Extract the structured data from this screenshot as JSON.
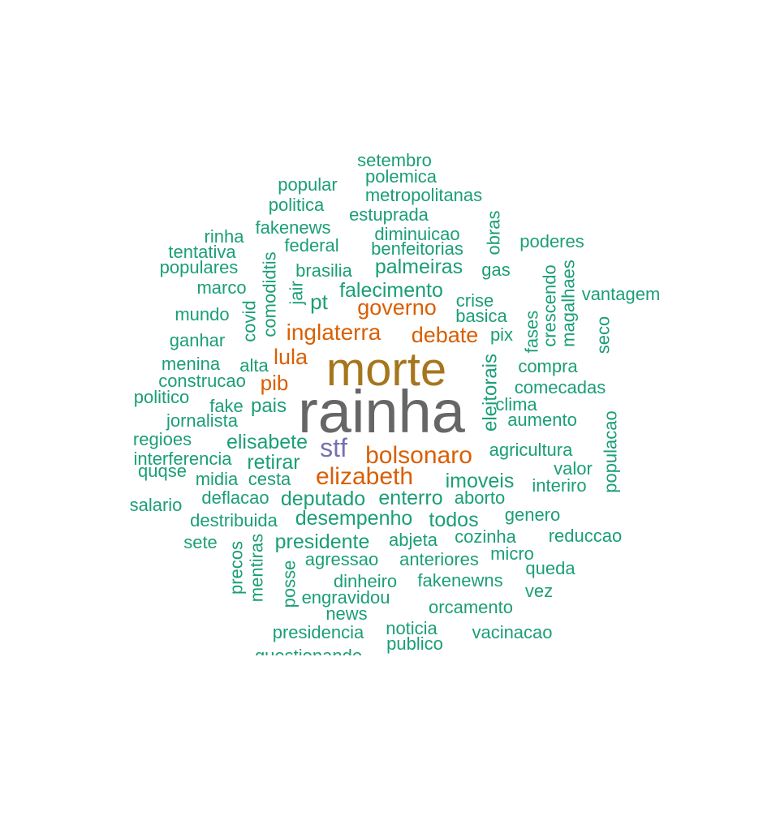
{
  "colors": {
    "teal": "#1b9e77",
    "orange": "#d95f02",
    "purple": "#7570b3",
    "brown": "#a6761d",
    "gray": "#666666"
  },
  "words": [
    {
      "text": "rainha",
      "color": "gray"
    },
    {
      "text": "morte",
      "color": "brown"
    },
    {
      "text": "bolsonaro",
      "color": "orange"
    },
    {
      "text": "elizabeth",
      "color": "orange"
    },
    {
      "text": "stf",
      "color": "purple"
    },
    {
      "text": "inglaterra",
      "color": "orange"
    },
    {
      "text": "governo",
      "color": "orange"
    },
    {
      "text": "debate",
      "color": "orange"
    },
    {
      "text": "lula",
      "color": "orange"
    },
    {
      "text": "pib",
      "color": "orange"
    },
    {
      "text": "setembro",
      "color": "teal"
    },
    {
      "text": "polemica",
      "color": "teal"
    },
    {
      "text": "popular",
      "color": "teal"
    },
    {
      "text": "metropolitanas",
      "color": "teal"
    },
    {
      "text": "politica",
      "color": "teal"
    },
    {
      "text": "estuprada",
      "color": "teal"
    },
    {
      "text": "fakenews",
      "color": "teal"
    },
    {
      "text": "rinha",
      "color": "teal"
    },
    {
      "text": "diminuicao",
      "color": "teal"
    },
    {
      "text": "federal",
      "color": "teal"
    },
    {
      "text": "benfeitorias",
      "color": "teal"
    },
    {
      "text": "tentativa",
      "color": "teal"
    },
    {
      "text": "poderes",
      "color": "teal"
    },
    {
      "text": "populares",
      "color": "teal"
    },
    {
      "text": "brasilia",
      "color": "teal"
    },
    {
      "text": "palmeiras",
      "color": "teal"
    },
    {
      "text": "gas",
      "color": "teal"
    },
    {
      "text": "marco",
      "color": "teal"
    },
    {
      "text": "falecimento",
      "color": "teal"
    },
    {
      "text": "vantagem",
      "color": "teal"
    },
    {
      "text": "pt",
      "color": "teal"
    },
    {
      "text": "crise",
      "color": "teal"
    },
    {
      "text": "mundo",
      "color": "teal"
    },
    {
      "text": "basica",
      "color": "teal"
    },
    {
      "text": "pix",
      "color": "teal"
    },
    {
      "text": "ganhar",
      "color": "teal"
    },
    {
      "text": "menina",
      "color": "teal"
    },
    {
      "text": "alta",
      "color": "teal"
    },
    {
      "text": "compra",
      "color": "teal"
    },
    {
      "text": "construcao",
      "color": "teal"
    },
    {
      "text": "comecadas",
      "color": "teal"
    },
    {
      "text": "politico",
      "color": "teal"
    },
    {
      "text": "fake",
      "color": "teal"
    },
    {
      "text": "pais",
      "color": "teal"
    },
    {
      "text": "clima",
      "color": "teal"
    },
    {
      "text": "jornalista",
      "color": "teal"
    },
    {
      "text": "aumento",
      "color": "teal"
    },
    {
      "text": "regioes",
      "color": "teal"
    },
    {
      "text": "elisabete",
      "color": "teal"
    },
    {
      "text": "agricultura",
      "color": "teal"
    },
    {
      "text": "interferencia",
      "color": "teal"
    },
    {
      "text": "retirar",
      "color": "teal"
    },
    {
      "text": "quqse",
      "color": "teal"
    },
    {
      "text": "valor",
      "color": "teal"
    },
    {
      "text": "midia",
      "color": "teal"
    },
    {
      "text": "cesta",
      "color": "teal"
    },
    {
      "text": "imoveis",
      "color": "teal"
    },
    {
      "text": "interiro",
      "color": "teal"
    },
    {
      "text": "salario",
      "color": "teal"
    },
    {
      "text": "deflacao",
      "color": "teal"
    },
    {
      "text": "deputado",
      "color": "teal"
    },
    {
      "text": "enterro",
      "color": "teal"
    },
    {
      "text": "aborto",
      "color": "teal"
    },
    {
      "text": "destribuida",
      "color": "teal"
    },
    {
      "text": "desempenho",
      "color": "teal"
    },
    {
      "text": "todos",
      "color": "teal"
    },
    {
      "text": "genero",
      "color": "teal"
    },
    {
      "text": "sete",
      "color": "teal"
    },
    {
      "text": "presidente",
      "color": "teal"
    },
    {
      "text": "abjeta",
      "color": "teal"
    },
    {
      "text": "cozinha",
      "color": "teal"
    },
    {
      "text": "reduccao",
      "color": "teal"
    },
    {
      "text": "agressao",
      "color": "teal"
    },
    {
      "text": "anteriores",
      "color": "teal"
    },
    {
      "text": "micro",
      "color": "teal"
    },
    {
      "text": "queda",
      "color": "teal"
    },
    {
      "text": "dinheiro",
      "color": "teal"
    },
    {
      "text": "fakenewns",
      "color": "teal"
    },
    {
      "text": "vez",
      "color": "teal"
    },
    {
      "text": "engravidou",
      "color": "teal"
    },
    {
      "text": "news",
      "color": "teal"
    },
    {
      "text": "orcamento",
      "color": "teal"
    },
    {
      "text": "presidencia",
      "color": "teal"
    },
    {
      "text": "noticia",
      "color": "teal"
    },
    {
      "text": "vacinacao",
      "color": "teal"
    },
    {
      "text": "publico",
      "color": "teal"
    },
    {
      "text": "questionando",
      "color": "teal"
    },
    {
      "text": "obras",
      "color": "teal"
    },
    {
      "text": "comodidtis",
      "color": "teal"
    },
    {
      "text": "jair",
      "color": "teal"
    },
    {
      "text": "covid",
      "color": "teal"
    },
    {
      "text": "crescendo",
      "color": "teal"
    },
    {
      "text": "magalhaes",
      "color": "teal"
    },
    {
      "text": "fases",
      "color": "teal"
    },
    {
      "text": "seco",
      "color": "teal"
    },
    {
      "text": "eleitorais",
      "color": "teal"
    },
    {
      "text": "populacao",
      "color": "teal"
    },
    {
      "text": "precos",
      "color": "teal"
    },
    {
      "text": "mentiras",
      "color": "teal"
    },
    {
      "text": "posse",
      "color": "teal"
    }
  ]
}
